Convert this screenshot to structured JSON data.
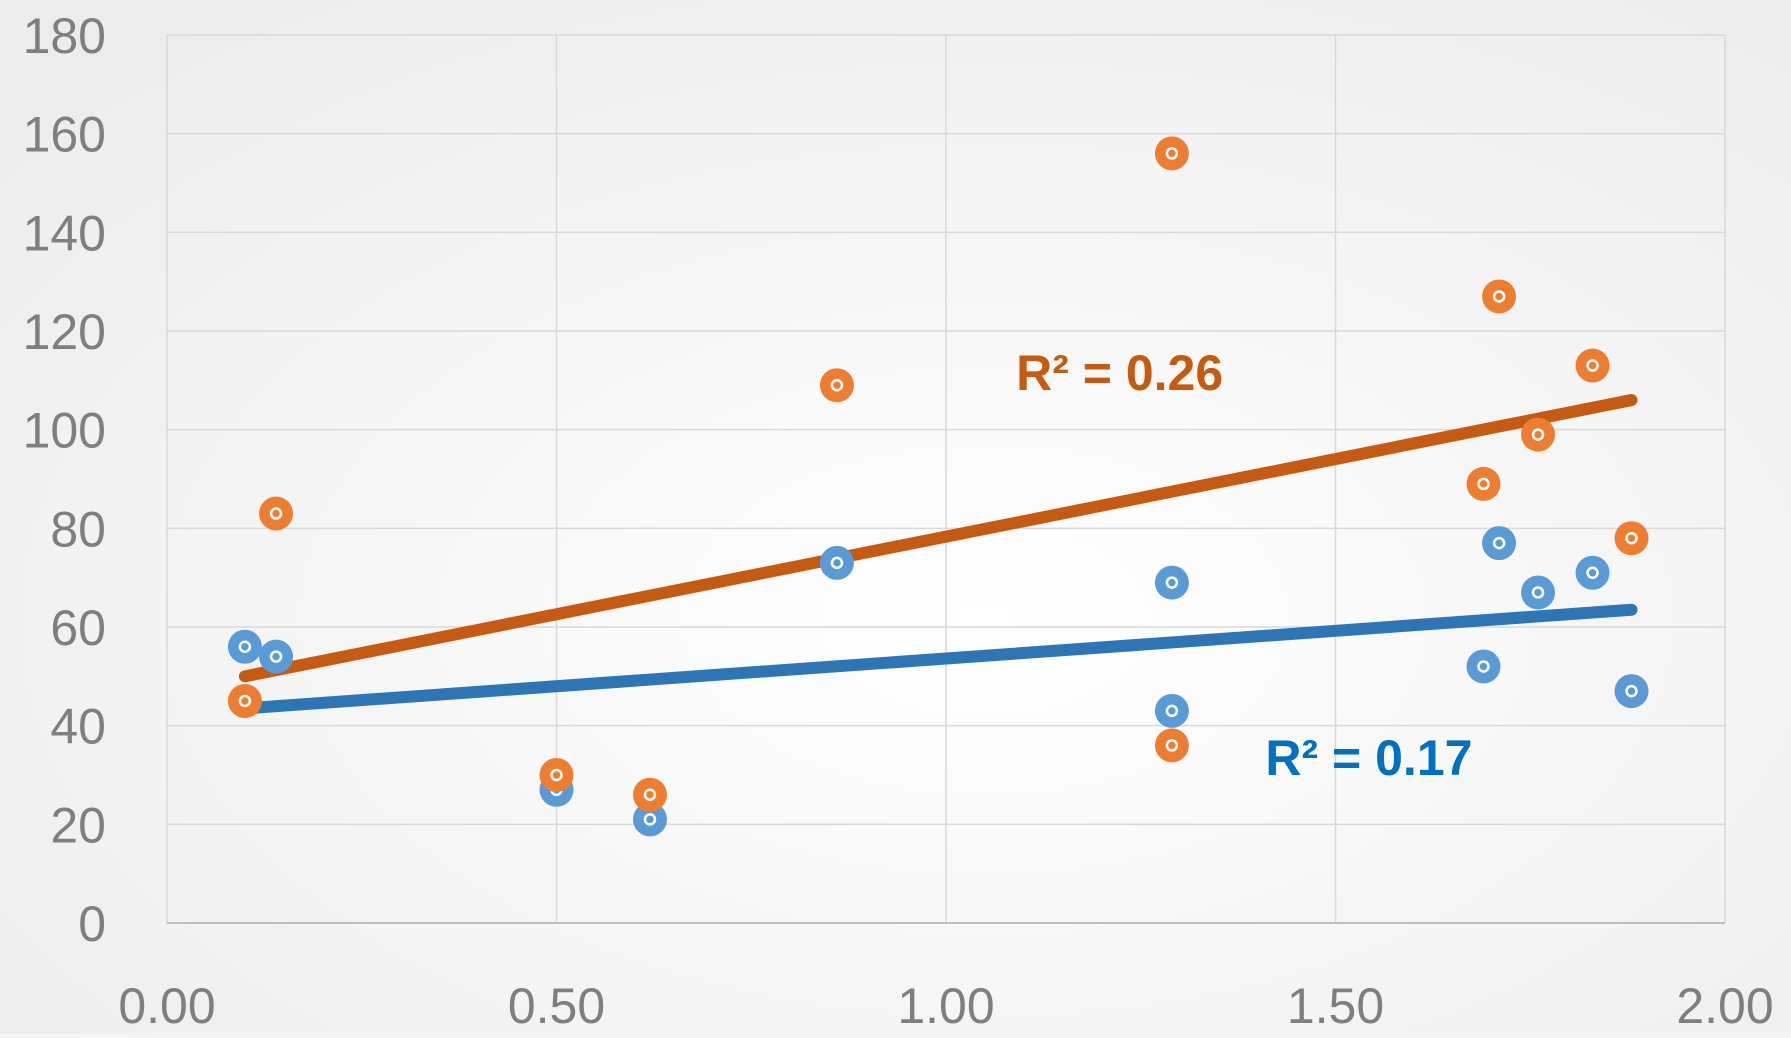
{
  "chart_data": {
    "type": "scatter",
    "title": "",
    "xlabel": "",
    "ylabel": "",
    "xlim": [
      0,
      2
    ],
    "ylim": [
      0,
      180
    ],
    "x_ticks": [
      "0.00",
      "0.50",
      "1.00",
      "1.50",
      "2.00"
    ],
    "y_ticks": [
      "0",
      "20",
      "40",
      "60",
      "80",
      "100",
      "120",
      "140",
      "160",
      "180"
    ],
    "grid": true,
    "legend": "none",
    "series": [
      {
        "color": "#5b9bd5",
        "trendline_color": "#2e75b6",
        "points": [
          {
            "x": 0.1,
            "y": 56
          },
          {
            "x": 0.14,
            "y": 54
          },
          {
            "x": 0.5,
            "y": 27
          },
          {
            "x": 0.62,
            "y": 21
          },
          {
            "x": 0.86,
            "y": 73
          },
          {
            "x": 1.29,
            "y": 69
          },
          {
            "x": 1.29,
            "y": 43
          },
          {
            "x": 1.69,
            "y": 52
          },
          {
            "x": 1.71,
            "y": 77
          },
          {
            "x": 1.76,
            "y": 67
          },
          {
            "x": 1.83,
            "y": 71
          },
          {
            "x": 1.88,
            "y": 47
          }
        ],
        "trendline": {
          "x0": 0.1,
          "y0": 43.5,
          "x1": 1.88,
          "y1": 63.5
        },
        "r2_label": "R² = 0.17",
        "r2_color": "#0070c0",
        "r2_anchor": {
          "x": 1.41,
          "y": 30
        }
      },
      {
        "color": "#ed7d31",
        "trendline_color": "#c55a11",
        "points": [
          {
            "x": 0.1,
            "y": 45
          },
          {
            "x": 0.14,
            "y": 83
          },
          {
            "x": 0.5,
            "y": 30
          },
          {
            "x": 0.62,
            "y": 26
          },
          {
            "x": 0.86,
            "y": 109
          },
          {
            "x": 1.29,
            "y": 156
          },
          {
            "x": 1.29,
            "y": 36
          },
          {
            "x": 1.69,
            "y": 89
          },
          {
            "x": 1.71,
            "y": 127
          },
          {
            "x": 1.76,
            "y": 99
          },
          {
            "x": 1.83,
            "y": 113
          },
          {
            "x": 1.88,
            "y": 78
          }
        ],
        "trendline": {
          "x0": 0.1,
          "y0": 50,
          "x1": 1.88,
          "y1": 106
        },
        "r2_label": "R² = 0.26",
        "r2_color": "#c55a11",
        "r2_anchor": {
          "x": 1.09,
          "y": 108
        }
      }
    ]
  }
}
